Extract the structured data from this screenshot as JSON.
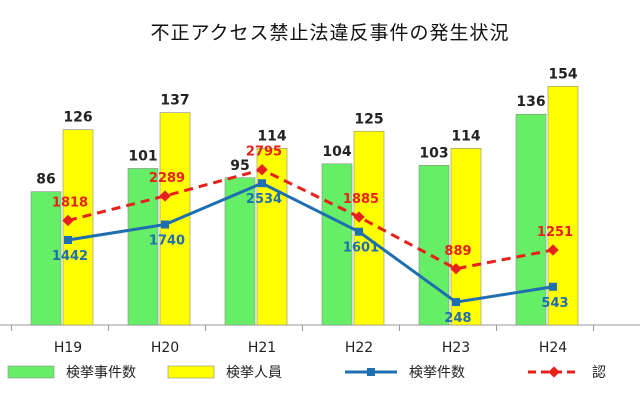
{
  "chart_data": {
    "type": "bar",
    "title": "不正アクセス禁止法違反事件の発生状況",
    "categories": [
      "H19",
      "H20",
      "H21",
      "H22",
      "H23",
      "H24"
    ],
    "bar_series": [
      {
        "name": "検挙事件数",
        "color": "#66ee66",
        "values": [
          86,
          101,
          95,
          104,
          103,
          136
        ]
      },
      {
        "name": "検挙人員",
        "color": "#ffff00",
        "values": [
          126,
          137,
          114,
          125,
          114,
          154
        ]
      }
    ],
    "line_series": [
      {
        "name": "検挙件数",
        "color": "#1f6fb0",
        "style": "solid",
        "marker": "square",
        "values": [
          1442,
          1740,
          2534,
          1601,
          248,
          543
        ]
      },
      {
        "name": "認",
        "color": "#e8201c",
        "style": "dashed",
        "marker": "diamond",
        "values": [
          1818,
          2289,
          2795,
          1885,
          889,
          1251
        ]
      }
    ],
    "legend_position": "bottom",
    "grid": false
  }
}
